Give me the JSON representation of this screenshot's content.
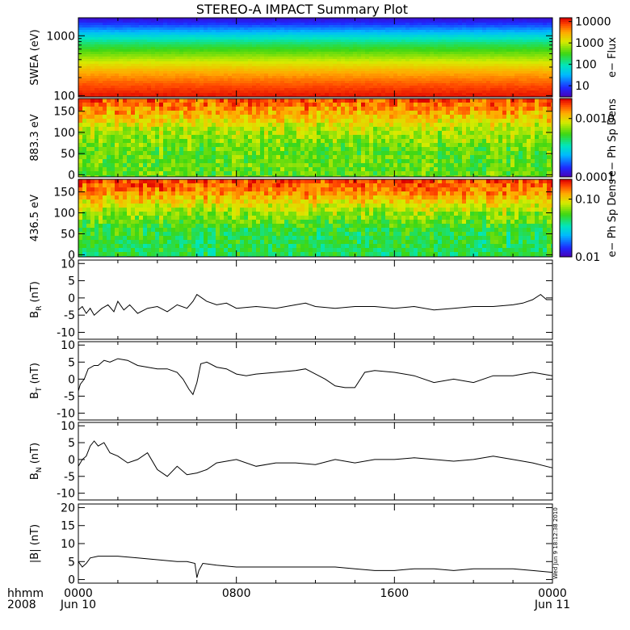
{
  "title": "STEREO-A IMPACT Summary Plot",
  "stamp": "Wed Jun  9 18:12:38 2010",
  "time_axis": {
    "label_top": "hhmm",
    "label_bottom": "2008",
    "ticks": [
      {
        "hour": 0,
        "top": "0000",
        "bottom": "Jun 10"
      },
      {
        "hour": 8,
        "top": "0800",
        "bottom": ""
      },
      {
        "hour": 16,
        "top": "1600",
        "bottom": ""
      },
      {
        "hour": 24,
        "top": "0000",
        "bottom": "Jun 11"
      }
    ],
    "range_hours": [
      0,
      24
    ]
  },
  "colors": {
    "line": "#000000",
    "frame": "#000000",
    "background": "#ffffff"
  },
  "chart_data": [
    {
      "id": "swea",
      "type": "heatmap",
      "ylabel": "SWEA (eV)",
      "yscale": "log",
      "ylim": [
        95,
        2000
      ],
      "yticks": [
        {
          "value": 100,
          "label": "100"
        },
        {
          "value": 1000,
          "label": "1000"
        }
      ],
      "colorbar": {
        "label": "e− Flux",
        "scale": "log",
        "range": [
          3,
          15000
        ],
        "ticks": [
          {
            "value": 10,
            "label": "10"
          },
          {
            "value": 100,
            "label": "100"
          },
          {
            "value": 1000,
            "label": "1000"
          },
          {
            "value": 10000,
            "label": "10000"
          }
        ]
      },
      "profile": [
        {
          "y": 100,
          "v": 12000
        },
        {
          "y": 150,
          "v": 7000
        },
        {
          "y": 250,
          "v": 3000
        },
        {
          "y": 400,
          "v": 900
        },
        {
          "y": 700,
          "v": 200
        },
        {
          "y": 1000,
          "v": 60
        },
        {
          "y": 1400,
          "v": 15
        },
        {
          "y": 2000,
          "v": 4
        }
      ]
    },
    {
      "id": "pad883",
      "type": "heatmap",
      "ylabel": "883.3 eV",
      "ylim": [
        -5,
        180
      ],
      "yticks": [
        {
          "value": 0,
          "label": "0"
        },
        {
          "value": 50,
          "label": "50"
        },
        {
          "value": 100,
          "label": "100"
        },
        {
          "value": 150,
          "label": "150"
        }
      ],
      "colorbar": {
        "label": "e− Ph Sp Dens",
        "scale": "log",
        "range": [
          0.0001,
          0.0022
        ],
        "ticks": [
          {
            "value": 0.0001,
            "label": "0.0001"
          },
          {
            "value": 0.001,
            "label": "0.0010"
          }
        ]
      },
      "profile": [
        {
          "y": 0,
          "v": 0.0006
        },
        {
          "y": 60,
          "v": 0.0006
        },
        {
          "y": 110,
          "v": 0.0008
        },
        {
          "y": 150,
          "v": 0.0013
        },
        {
          "y": 180,
          "v": 0.0017
        }
      ]
    },
    {
      "id": "pad436",
      "type": "heatmap",
      "ylabel": "436.5 eV",
      "ylim": [
        -5,
        180
      ],
      "yticks": [
        {
          "value": 0,
          "label": "0"
        },
        {
          "value": 50,
          "label": "50"
        },
        {
          "value": 100,
          "label": "100"
        },
        {
          "value": 150,
          "label": "150"
        }
      ],
      "colorbar": {
        "label": "e− Ph Sp Dens",
        "scale": "log",
        "range": [
          0.01,
          0.22
        ],
        "ticks": [
          {
            "value": 0.01,
            "label": "0.01"
          },
          {
            "value": 0.1,
            "label": "0.10"
          }
        ]
      },
      "profile": [
        {
          "y": 0,
          "v": 0.045
        },
        {
          "y": 60,
          "v": 0.05
        },
        {
          "y": 110,
          "v": 0.08
        },
        {
          "y": 150,
          "v": 0.14
        },
        {
          "y": 180,
          "v": 0.18
        }
      ]
    },
    {
      "id": "br",
      "type": "line",
      "ylabel": "B",
      "ylabel_sub": "R",
      "ylabel_unit": "(nT)",
      "ylim": [
        -12,
        11
      ],
      "yticks": [
        {
          "value": -10,
          "label": "-10"
        },
        {
          "value": -5,
          "label": "-5"
        },
        {
          "value": 0,
          "label": "0"
        },
        {
          "value": 5,
          "label": "5"
        },
        {
          "value": 10,
          "label": "10"
        }
      ],
      "x": [
        0,
        0.2,
        0.4,
        0.6,
        0.8,
        1.0,
        1.2,
        1.5,
        1.8,
        2.0,
        2.3,
        2.6,
        3.0,
        3.5,
        4.0,
        4.5,
        5.0,
        5.5,
        5.8,
        6.0,
        6.5,
        7.0,
        7.5,
        8.0,
        9.0,
        10.0,
        11.0,
        11.5,
        12.0,
        13.0,
        14.0,
        15.0,
        16.0,
        17.0,
        18.0,
        19.0,
        20.0,
        21.0,
        22.0,
        22.5,
        23.0,
        23.4,
        23.7,
        24.0
      ],
      "y": [
        -3.5,
        -2.5,
        -4.5,
        -3,
        -5,
        -4,
        -3,
        -2,
        -4,
        -1,
        -3.5,
        -2,
        -4.5,
        -3,
        -2.5,
        -4,
        -2,
        -3,
        -1,
        1,
        -1,
        -2,
        -1.5,
        -3,
        -2.5,
        -3,
        -2,
        -1.5,
        -2.5,
        -3,
        -2.5,
        -2.5,
        -3,
        -2.5,
        -3.5,
        -3,
        -2.5,
        -2.5,
        -2,
        -1.5,
        -0.5,
        1,
        -0.5,
        -0.5
      ]
    },
    {
      "id": "bt",
      "type": "line",
      "ylabel": "B",
      "ylabel_sub": "T",
      "ylabel_unit": "(nT)",
      "ylim": [
        -12,
        11
      ],
      "yticks": [
        {
          "value": -10,
          "label": "-10"
        },
        {
          "value": -5,
          "label": "-5"
        },
        {
          "value": 0,
          "label": "0"
        },
        {
          "value": 5,
          "label": "5"
        },
        {
          "value": 10,
          "label": "10"
        }
      ],
      "x": [
        0,
        0.1,
        0.3,
        0.5,
        0.8,
        1.0,
        1.3,
        1.6,
        2.0,
        2.5,
        3.0,
        3.5,
        4.0,
        4.5,
        5.0,
        5.3,
        5.6,
        5.8,
        6.0,
        6.2,
        6.5,
        7.0,
        7.5,
        8.0,
        8.5,
        9.0,
        10.0,
        11.0,
        11.5,
        12.0,
        12.5,
        13.0,
        13.5,
        14.0,
        14.5,
        15.0,
        16.0,
        17.0,
        18.0,
        19.0,
        20.0,
        21.0,
        22.0,
        23.0,
        24.0
      ],
      "y": [
        -3.5,
        -1.5,
        0,
        3,
        4,
        4,
        5.5,
        5,
        6,
        5.5,
        4,
        3.5,
        3,
        3,
        2,
        0,
        -3,
        -4.5,
        -1,
        4.5,
        5,
        3.5,
        3,
        1.5,
        1,
        1.5,
        2,
        2.5,
        3,
        1.5,
        0,
        -2,
        -2.5,
        -2.5,
        2,
        2.5,
        2,
        1,
        -1,
        0,
        -1,
        1,
        1,
        2,
        1
      ]
    },
    {
      "id": "bn",
      "type": "line",
      "ylabel": "B",
      "ylabel_sub": "N",
      "ylabel_unit": "(nT)",
      "ylim": [
        -12,
        11
      ],
      "yticks": [
        {
          "value": -10,
          "label": "-10"
        },
        {
          "value": -5,
          "label": "-5"
        },
        {
          "value": 0,
          "label": "0"
        },
        {
          "value": 5,
          "label": "5"
        },
        {
          "value": 10,
          "label": "10"
        }
      ],
      "x": [
        0,
        0.2,
        0.4,
        0.6,
        0.8,
        1.0,
        1.3,
        1.6,
        2.0,
        2.5,
        3.0,
        3.5,
        4.0,
        4.5,
        5.0,
        5.5,
        6.0,
        6.5,
        7.0,
        8.0,
        9.0,
        10.0,
        11.0,
        12.0,
        13.0,
        14.0,
        15.0,
        16.0,
        17.0,
        18.0,
        19.0,
        20.0,
        21.0,
        22.0,
        23.0,
        24.0
      ],
      "y": [
        -2,
        0,
        1,
        4,
        5.5,
        4,
        5,
        2,
        1,
        -1,
        0,
        2,
        -3,
        -5,
        -2,
        -4.5,
        -4,
        -3,
        -1,
        0,
        -2,
        -1,
        -1,
        -1.5,
        0,
        -1,
        0,
        0,
        0.5,
        0,
        -0.5,
        0,
        1,
        0,
        -1,
        -2.5
      ]
    },
    {
      "id": "bmag",
      "type": "line",
      "ylabel": "|B|",
      "ylabel_unit": "(nT)",
      "ylim": [
        -1,
        21
      ],
      "yticks": [
        {
          "value": 0,
          "label": "0"
        },
        {
          "value": 5,
          "label": "5"
        },
        {
          "value": 10,
          "label": "10"
        },
        {
          "value": 15,
          "label": "15"
        },
        {
          "value": 20,
          "label": "20"
        }
      ],
      "x": [
        0,
        0.2,
        0.4,
        0.6,
        1.0,
        2.0,
        3.0,
        4.0,
        5.0,
        5.5,
        5.9,
        6.0,
        6.1,
        6.3,
        7.0,
        8.0,
        9.0,
        10.0,
        11.0,
        12.0,
        13.0,
        14.0,
        15.0,
        16.0,
        17.0,
        18.0,
        19.0,
        20.0,
        21.0,
        22.0,
        23.0,
        24.0
      ],
      "y": [
        5,
        3.5,
        4.5,
        6,
        6.5,
        6.5,
        6,
        5.5,
        5,
        5,
        4.5,
        0.5,
        2.5,
        4.5,
        4,
        3.5,
        3.5,
        3.5,
        3.5,
        3.5,
        3.5,
        3,
        2.5,
        2.5,
        3,
        3,
        2.5,
        3,
        3,
        3,
        2.5,
        2
      ]
    }
  ]
}
